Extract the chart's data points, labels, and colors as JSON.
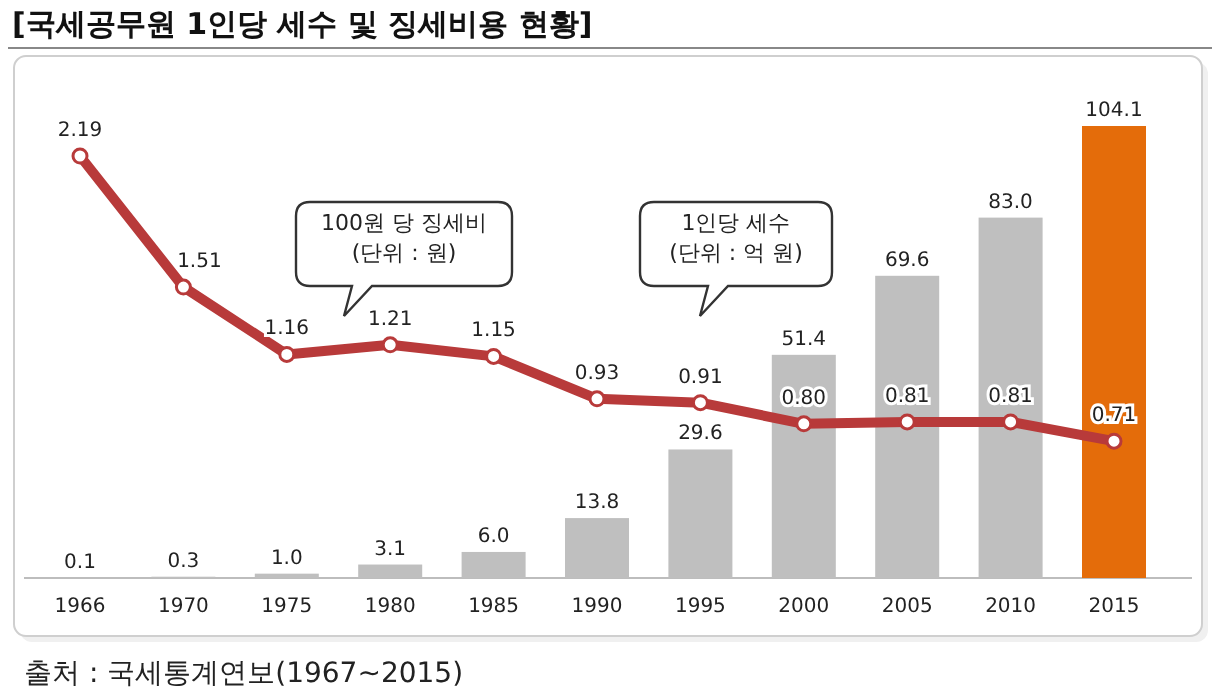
{
  "chart_data": {
    "type": "bar",
    "title": "[국세공무원 1인당 세수 및 징세비용 현황]",
    "categories": [
      "1966",
      "1970",
      "1975",
      "1980",
      "1985",
      "1990",
      "1995",
      "2000",
      "2005",
      "2010",
      "2015"
    ],
    "series": [
      {
        "colors": [
          "#bfbfbf",
          "#bfbfbf",
          "#bfbfbf",
          "#bfbfbf",
          "#bfbfbf",
          "#bfbfbf",
          "#bfbfbf",
          "#bfbfbf",
          "#bfbfbf",
          "#bfbfbf",
          "#e46c0a"
        ],
        "values": [
          0.1,
          0.3,
          1.0,
          3.1,
          6.0,
          13.8,
          29.6,
          51.4,
          69.6,
          83.0,
          104.1
        ],
        "value_labels": [
          "0.1",
          "0.3",
          "1.0",
          "3.1",
          "6.0",
          "13.8",
          "29.6",
          "51.4",
          "69.6",
          "83.0",
          "104.1"
        ]
      },
      {
        "type": "line",
        "axis": "y2",
        "color": "#b83a3a",
        "values": [
          2.19,
          1.51,
          1.16,
          1.21,
          1.15,
          0.93,
          0.91,
          0.8,
          0.81,
          0.81,
          0.71
        ],
        "value_labels": [
          "2.19",
          "1.51",
          "1.16",
          "1.21",
          "1.15",
          "0.93",
          "0.91",
          "0.80",
          "0.81",
          "0.81",
          "0.71"
        ]
      }
    ],
    "tick_labels": "x",
    "marker": "circle",
    "line_style": "solid",
    "annotations": [
      "100원 당 징세비\n(단위 : 원)",
      "1인당 세수\n(단위 : 억 원)",
      "출처 : 국세통계연보(1967~2015)"
    ]
  }
}
